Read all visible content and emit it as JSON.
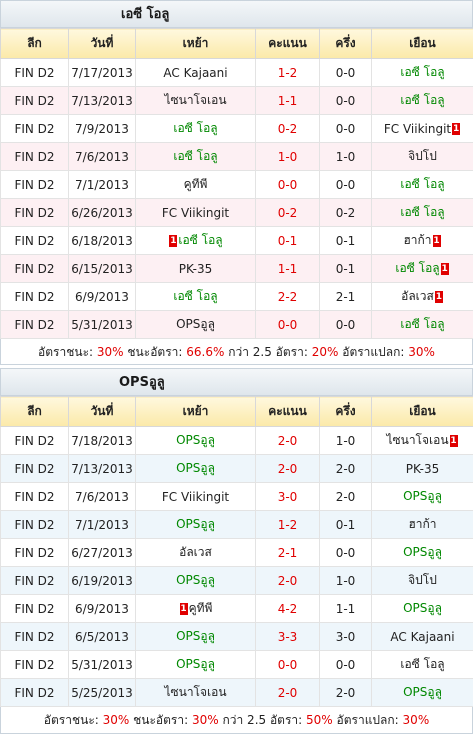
{
  "sections": [
    {
      "title": "เอซี โอลู",
      "headers": [
        "ลีก",
        "วันที่",
        "เหย้า",
        "คะแนน",
        "ครึ่ง",
        "เยือน"
      ],
      "rows": [
        {
          "league": "FIN D2",
          "date": "7/17/2013",
          "home": "AC Kajaani",
          "home_flag": "",
          "home_color": "black",
          "score": "1-2",
          "half": "0-0",
          "away": "เอซี โอลู",
          "away_flag": "",
          "away_color": "green"
        },
        {
          "league": "FIN D2",
          "date": "7/13/2013",
          "home": "ไซนาโจเอน",
          "home_flag": "",
          "home_color": "black",
          "score": "1-1",
          "half": "0-0",
          "away": "เอซี โอลู",
          "away_flag": "",
          "away_color": "green"
        },
        {
          "league": "FIN D2",
          "date": "7/9/2013",
          "home": "เอซี โอลู",
          "home_flag": "",
          "home_color": "green",
          "score": "0-2",
          "half": "0-0",
          "away": "FC Viikingit",
          "away_flag": "1",
          "away_color": "black"
        },
        {
          "league": "FIN D2",
          "date": "7/6/2013",
          "home": "เอซี โอลู",
          "home_flag": "",
          "home_color": "green",
          "score": "1-0",
          "half": "1-0",
          "away": "จิปโป",
          "away_flag": "",
          "away_color": "black"
        },
        {
          "league": "FIN D2",
          "date": "7/1/2013",
          "home": "คูทีพี",
          "home_flag": "",
          "home_color": "black",
          "score": "0-0",
          "half": "0-0",
          "away": "เอซี โอลู",
          "away_flag": "",
          "away_color": "green"
        },
        {
          "league": "FIN D2",
          "date": "6/26/2013",
          "home": "FC Viikingit",
          "home_flag": "",
          "home_color": "black",
          "score": "0-2",
          "half": "0-2",
          "away": "เอซี โอลู",
          "away_flag": "",
          "away_color": "green"
        },
        {
          "league": "FIN D2",
          "date": "6/18/2013",
          "home": "เอซี โอลู",
          "home_flag": "1",
          "home_color": "green",
          "score": "0-1",
          "half": "0-1",
          "away": "ฮาก้า",
          "away_flag": "1",
          "away_color": "black"
        },
        {
          "league": "FIN D2",
          "date": "6/15/2013",
          "home": "PK-35",
          "home_flag": "",
          "home_color": "black",
          "score": "1-1",
          "half": "0-1",
          "away": "เอซี โอลู",
          "away_flag": "1",
          "away_color": "green"
        },
        {
          "league": "FIN D2",
          "date": "6/9/2013",
          "home": "เอซี โอลู",
          "home_flag": "",
          "home_color": "green",
          "score": "2-2",
          "half": "2-1",
          "away": "อัลเวส",
          "away_flag": "1",
          "away_color": "black"
        },
        {
          "league": "FIN D2",
          "date": "5/31/2013",
          "home": "OPSอูลู",
          "home_flag": "",
          "home_color": "black",
          "score": "0-0",
          "half": "0-0",
          "away": "เอซี โอลู",
          "away_flag": "",
          "away_color": "green"
        }
      ],
      "stats": {
        "win_label": "อัตราชนะ:",
        "win": "30%",
        "beat_label": "ชนะอัตรา:",
        "beat": "66.6%",
        "over_label": "กว่า 2.5 อัตรา:",
        "over": "20%",
        "odd_label": "อัตราแปลก:",
        "odd": "30%"
      }
    },
    {
      "title": "OPSอูลู",
      "headers": [
        "ลีก",
        "วันที่",
        "เหย้า",
        "คะแนน",
        "ครึ่ง",
        "เยือน"
      ],
      "rows": [
        {
          "league": "FIN D2",
          "date": "7/18/2013",
          "home": "OPSอูลู",
          "home_flag": "",
          "home_color": "green",
          "score": "2-0",
          "half": "1-0",
          "away": "ไซนาโจเอน",
          "away_flag": "1",
          "away_color": "black"
        },
        {
          "league": "FIN D2",
          "date": "7/13/2013",
          "home": "OPSอูลู",
          "home_flag": "",
          "home_color": "green",
          "score": "2-0",
          "half": "2-0",
          "away": "PK-35",
          "away_flag": "",
          "away_color": "black"
        },
        {
          "league": "FIN D2",
          "date": "7/6/2013",
          "home": "FC Viikingit",
          "home_flag": "",
          "home_color": "black",
          "score": "3-0",
          "half": "2-0",
          "away": "OPSอูลู",
          "away_flag": "",
          "away_color": "green"
        },
        {
          "league": "FIN D2",
          "date": "7/1/2013",
          "home": "OPSอูลู",
          "home_flag": "",
          "home_color": "green",
          "score": "1-2",
          "half": "0-1",
          "away": "ฮาก้า",
          "away_flag": "",
          "away_color": "black"
        },
        {
          "league": "FIN D2",
          "date": "6/27/2013",
          "home": "อัลเวส",
          "home_flag": "",
          "home_color": "black",
          "score": "2-1",
          "half": "0-0",
          "away": "OPSอูลู",
          "away_flag": "",
          "away_color": "green"
        },
        {
          "league": "FIN D2",
          "date": "6/19/2013",
          "home": "OPSอูลู",
          "home_flag": "",
          "home_color": "green",
          "score": "2-0",
          "half": "1-0",
          "away": "จิปโป",
          "away_flag": "",
          "away_color": "black"
        },
        {
          "league": "FIN D2",
          "date": "6/9/2013",
          "home": "คูทีพี",
          "home_flag": "1",
          "home_color": "black",
          "score": "4-2",
          "half": "1-1",
          "away": "OPSอูลู",
          "away_flag": "",
          "away_color": "green"
        },
        {
          "league": "FIN D2",
          "date": "6/5/2013",
          "home": "OPSอูลู",
          "home_flag": "",
          "home_color": "green",
          "score": "3-3",
          "half": "3-0",
          "away": "AC Kajaani",
          "away_flag": "",
          "away_color": "black"
        },
        {
          "league": "FIN D2",
          "date": "5/31/2013",
          "home": "OPSอูลู",
          "home_flag": "",
          "home_color": "green",
          "score": "0-0",
          "half": "0-0",
          "away": "เอซี โอลู",
          "away_flag": "",
          "away_color": "black"
        },
        {
          "league": "FIN D2",
          "date": "5/25/2013",
          "home": "ไซนาโจเอน",
          "home_flag": "",
          "home_color": "black",
          "score": "2-0",
          "half": "2-0",
          "away": "OPSอูลู",
          "away_flag": "",
          "away_color": "green"
        }
      ],
      "stats": {
        "win_label": "อัตราชนะ:",
        "win": "30%",
        "beat_label": "ชนะอัตรา:",
        "beat": "30%",
        "over_label": "กว่า 2.5 อัตรา:",
        "over": "50%",
        "odd_label": "อัตราแปลก:",
        "odd": "30%"
      }
    }
  ],
  "colors": {
    "win_team": "#008800",
    "score": "#e00000",
    "flag": "#e00000"
  }
}
